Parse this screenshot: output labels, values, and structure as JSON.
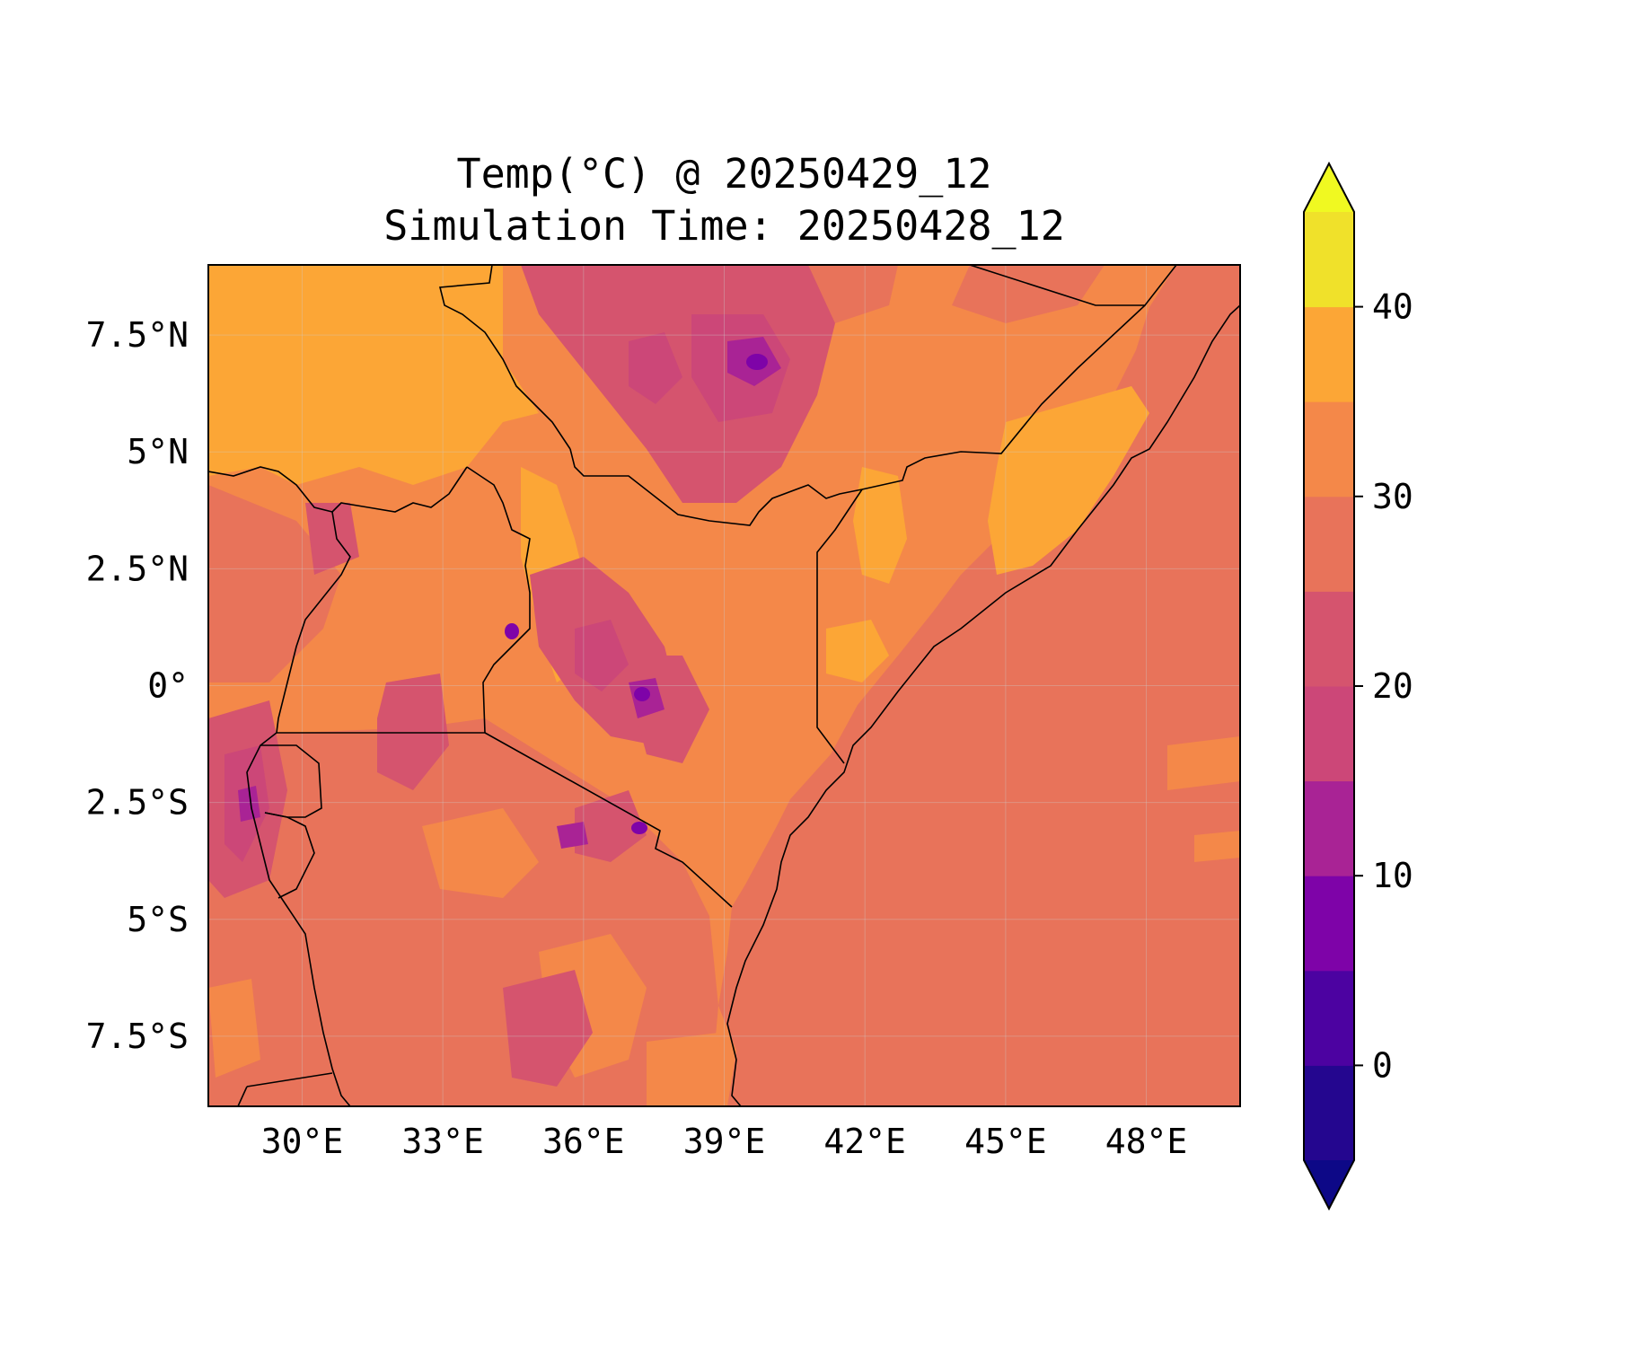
{
  "title": {
    "line1": "Temp(°C) @ 20250429_12",
    "line2": "Simulation Time: 20250428_12"
  },
  "chart_data": {
    "type": "heatmap",
    "variable": "Temp(°C)",
    "valid_time": "20250429_12",
    "simulation_time": "20250428_12",
    "xlim": [
      28.0,
      50.0
    ],
    "ylim": [
      -9.0,
      9.0
    ],
    "x_ticks": [
      {
        "value": 30,
        "label": "30°E"
      },
      {
        "value": 33,
        "label": "33°E"
      },
      {
        "value": 36,
        "label": "36°E"
      },
      {
        "value": 39,
        "label": "39°E"
      },
      {
        "value": 42,
        "label": "42°E"
      },
      {
        "value": 45,
        "label": "45°E"
      },
      {
        "value": 48,
        "label": "48°E"
      }
    ],
    "y_ticks": [
      {
        "value": 7.5,
        "label": "7.5°N"
      },
      {
        "value": 5,
        "label": "5°N"
      },
      {
        "value": 2.5,
        "label": "2.5°N"
      },
      {
        "value": 0,
        "label": "0°"
      },
      {
        "value": -2.5,
        "label": "2.5°S"
      },
      {
        "value": -5,
        "label": "5°S"
      },
      {
        "value": -7.5,
        "label": "7.5°S"
      }
    ],
    "grid": true,
    "colorbar": {
      "position": "right",
      "extend": "both",
      "range": [
        -5,
        45
      ],
      "step": 5,
      "ticks": [
        0,
        10,
        20,
        30,
        40
      ],
      "under_color": "#0d0887",
      "over_color": "#f0f921",
      "colors": [
        "#24068f",
        "#4c02a1",
        "#7e03a8",
        "#a92395",
        "#cc4778",
        "#d5546e",
        "#e8735a",
        "#f48849",
        "#fca636",
        "#f0e12a"
      ]
    },
    "regions": {
      "ocean": {
        "temp": 27.5,
        "color": "#e8735a"
      },
      "lowland": {
        "temp": 32.5,
        "color": "#f48849"
      },
      "hot_desert": {
        "temp": 37.5,
        "color": "#fca636"
      },
      "highland": {
        "temp": 22.5,
        "color": "#d5546e"
      },
      "high_mountain": {
        "temp": 17.5,
        "color": "#cc4778"
      },
      "peak": {
        "temp": 12.5,
        "color": "#a92395"
      },
      "summit": {
        "temp": 7.5,
        "color": "#7e03a8"
      }
    }
  }
}
